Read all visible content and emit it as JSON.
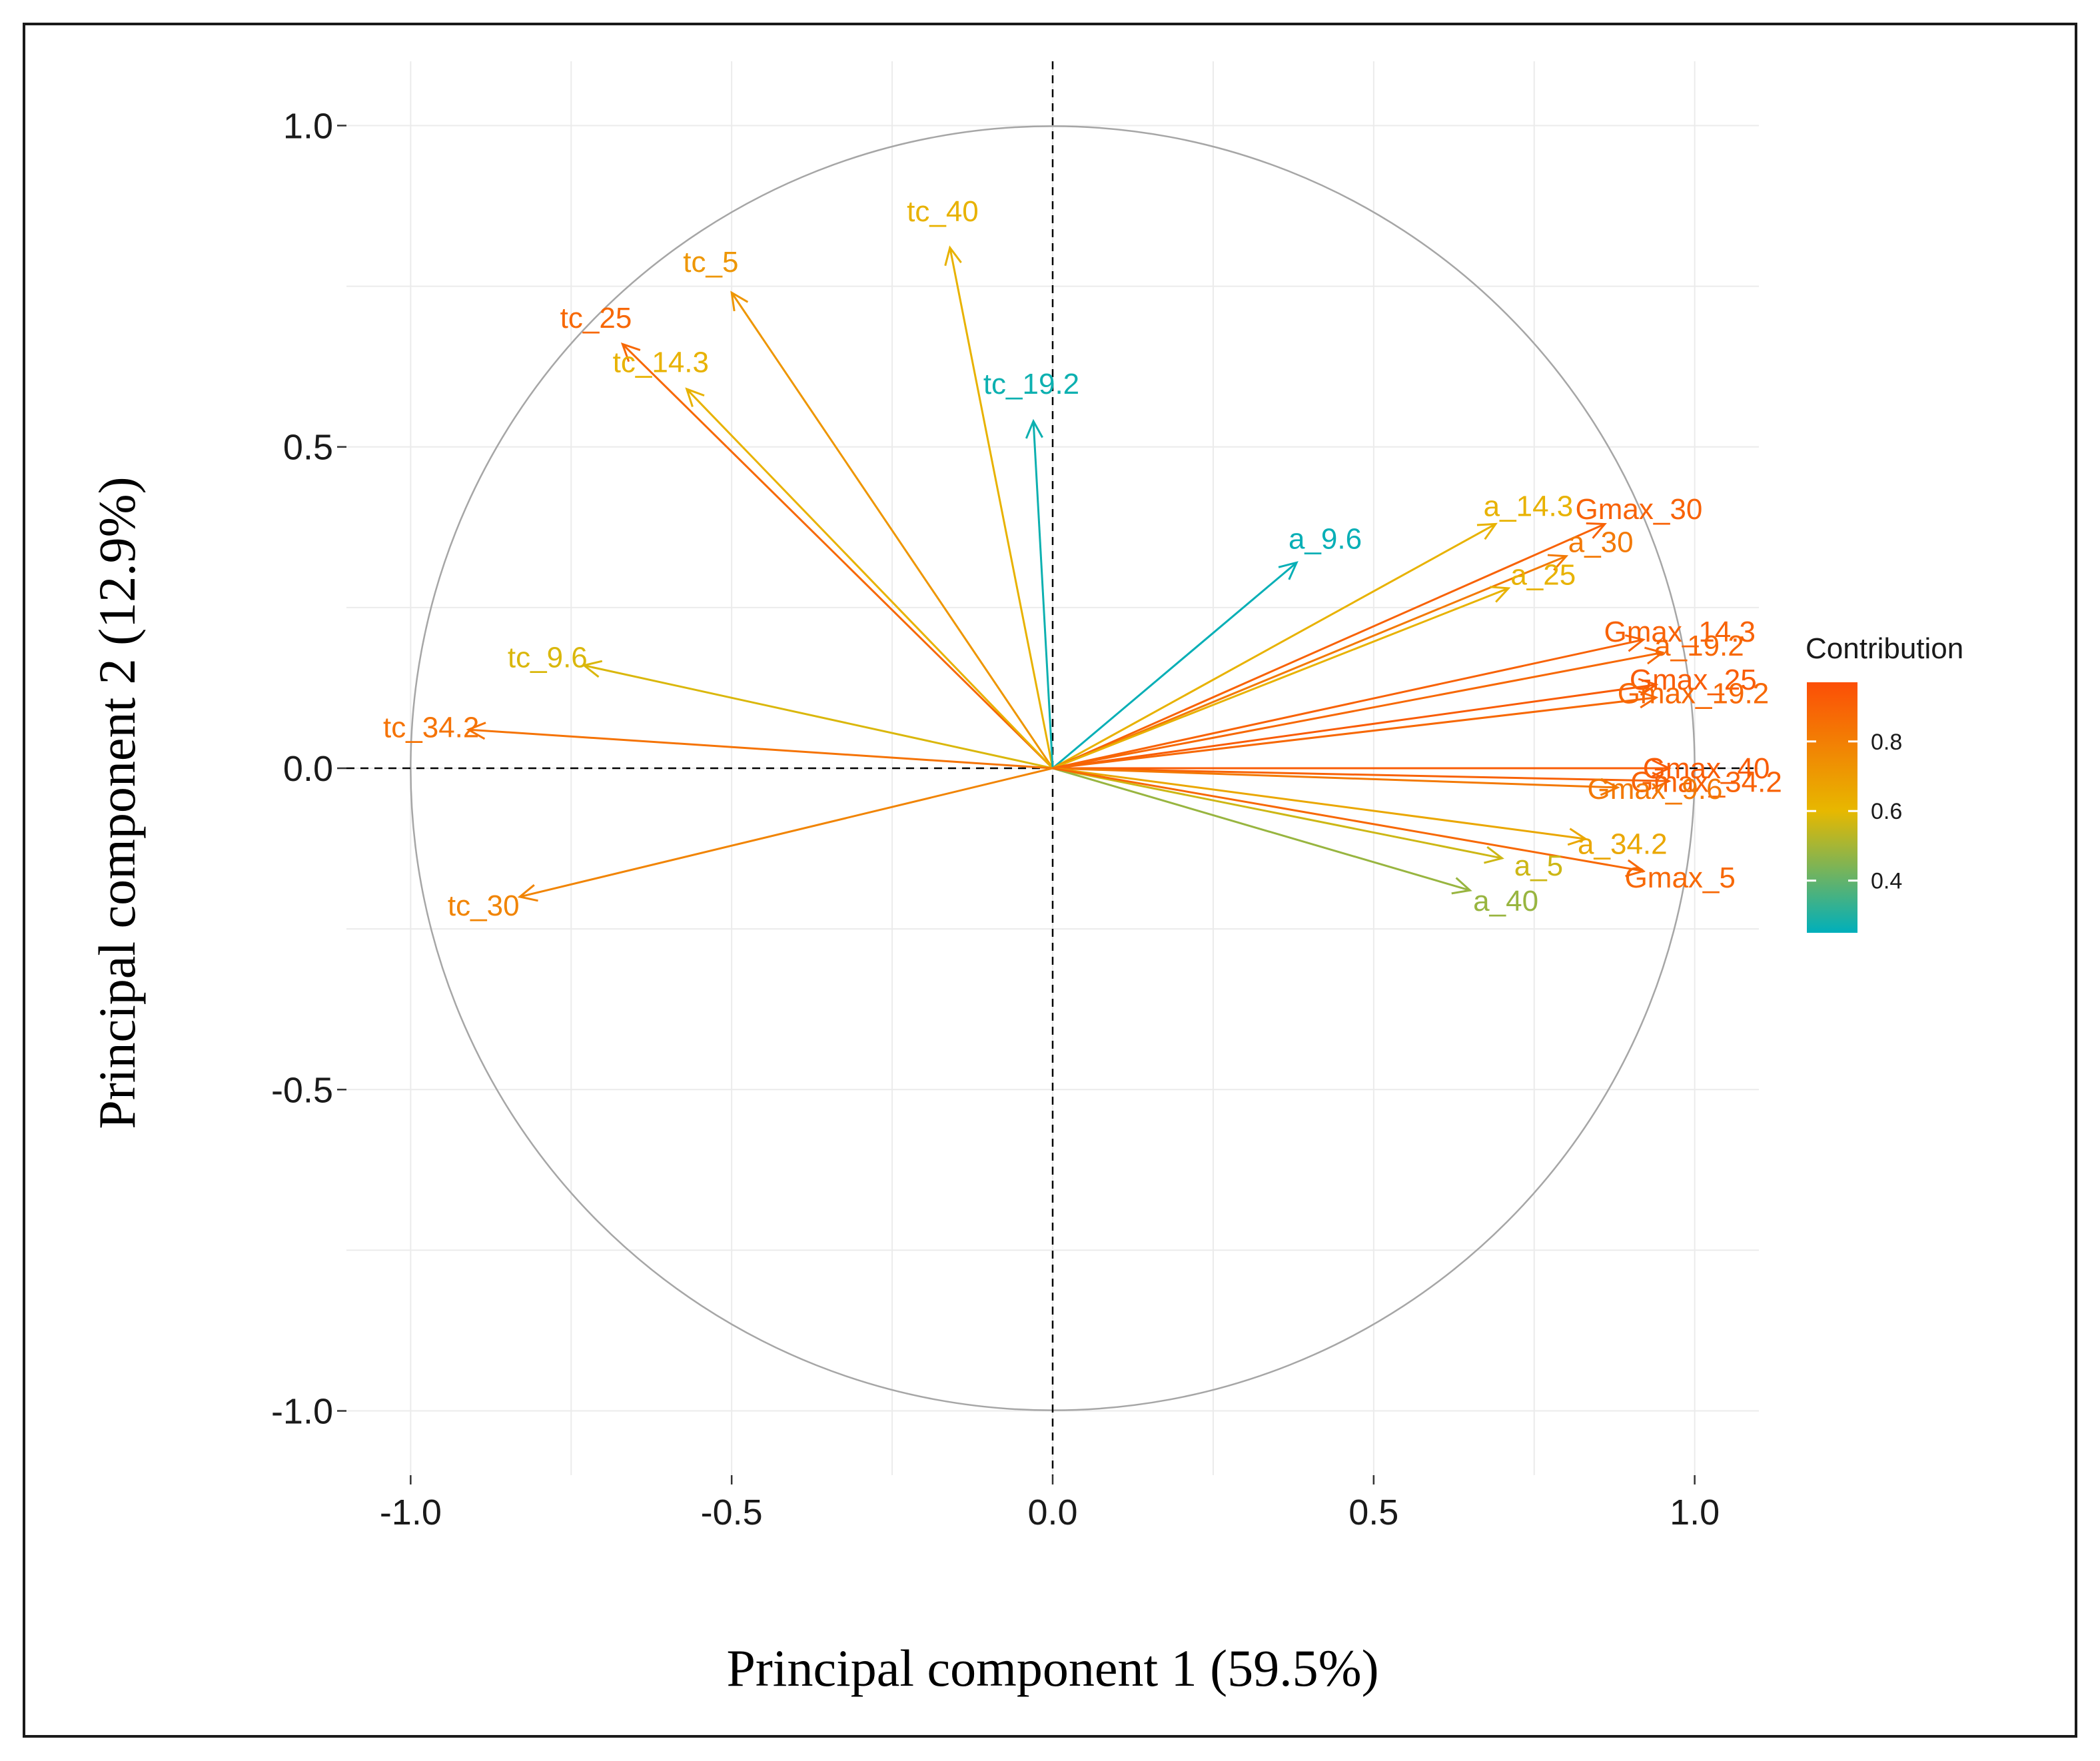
{
  "chart_data": {
    "type": "scatter",
    "subtype": "pca-variable-correlation-circle",
    "title": "",
    "xlabel": "Principal component 1 (59.5%)",
    "ylabel": "Principal component 2 (12.9%)",
    "xlim": [
      -1.1,
      1.1
    ],
    "ylim": [
      -1.1,
      1.1
    ],
    "xticks": [
      -1.0,
      -0.5,
      0.0,
      0.5,
      1.0
    ],
    "yticks": [
      -1.0,
      -0.5,
      0.0,
      0.5,
      1.0
    ],
    "xtick_labels": [
      "-1.0",
      "-0.5",
      "0.0",
      "0.5",
      "1.0"
    ],
    "ytick_labels": [
      "-1.0",
      "-0.5",
      "0.0",
      "0.5",
      "1.0"
    ],
    "grid": true,
    "unit_circle": true,
    "zero_lines": "dashed",
    "legend": {
      "title": "Contribution",
      "position": "right",
      "range": [
        0.25,
        0.97
      ],
      "ticks": [
        0.4,
        0.6,
        0.8
      ],
      "tick_labels": [
        "0.4",
        "0.6",
        "0.8"
      ],
      "color_stops": [
        {
          "value": 0.25,
          "color": "#00AFBB"
        },
        {
          "value": 0.6,
          "color": "#E7B800"
        },
        {
          "value": 0.97,
          "color": "#FC4E07"
        }
      ]
    },
    "arrows": [
      {
        "name": "tc_40",
        "x": -0.16,
        "y": 0.81,
        "contrib": 0.62
      },
      {
        "name": "tc_5",
        "x": -0.5,
        "y": 0.74,
        "contrib": 0.72
      },
      {
        "name": "tc_25",
        "x": -0.67,
        "y": 0.66,
        "contrib": 0.88
      },
      {
        "name": "tc_14.3",
        "x": -0.57,
        "y": 0.59,
        "contrib": 0.62
      },
      {
        "name": "tc_19.2",
        "x": -0.03,
        "y": 0.54,
        "contrib": 0.27
      },
      {
        "name": "tc_9.6",
        "x": -0.73,
        "y": 0.16,
        "contrib": 0.58
      },
      {
        "name": "tc_34.2",
        "x": -0.91,
        "y": 0.06,
        "contrib": 0.84
      },
      {
        "name": "tc_30",
        "x": -0.83,
        "y": -0.2,
        "contrib": 0.78
      },
      {
        "name": "a_9.6",
        "x": 0.38,
        "y": 0.32,
        "contrib": 0.26
      },
      {
        "name": "a_14.3",
        "x": 0.69,
        "y": 0.38,
        "contrib": 0.62
      },
      {
        "name": "Gmax_30",
        "x": 0.86,
        "y": 0.38,
        "contrib": 0.9
      },
      {
        "name": "a_30",
        "x": 0.8,
        "y": 0.33,
        "contrib": 0.82
      },
      {
        "name": "a_25",
        "x": 0.71,
        "y": 0.28,
        "contrib": 0.62
      },
      {
        "name": "Gmax_14.3",
        "x": 0.92,
        "y": 0.2,
        "contrib": 0.9
      },
      {
        "name": "a_19.2",
        "x": 0.95,
        "y": 0.18,
        "contrib": 0.88
      },
      {
        "name": "Gmax_25",
        "x": 0.94,
        "y": 0.13,
        "contrib": 0.92
      },
      {
        "name": "Gmax_19.2",
        "x": 0.94,
        "y": 0.11,
        "contrib": 0.88
      },
      {
        "name": "Gmax_40",
        "x": 0.96,
        "y": 0.0,
        "contrib": 0.92
      },
      {
        "name": "Gmax_34.2",
        "x": 0.96,
        "y": -0.02,
        "contrib": 0.9
      },
      {
        "name": "Gmax_9.6",
        "x": 0.88,
        "y": -0.03,
        "contrib": 0.82
      },
      {
        "name": "a_34.2",
        "x": 0.83,
        "y": -0.11,
        "contrib": 0.66
      },
      {
        "name": "a_5",
        "x": 0.7,
        "y": -0.14,
        "contrib": 0.56
      },
      {
        "name": "a_40",
        "x": 0.65,
        "y": -0.19,
        "contrib": 0.48
      },
      {
        "name": "Gmax_5",
        "x": 0.92,
        "y": -0.16,
        "contrib": 0.88
      }
    ]
  }
}
